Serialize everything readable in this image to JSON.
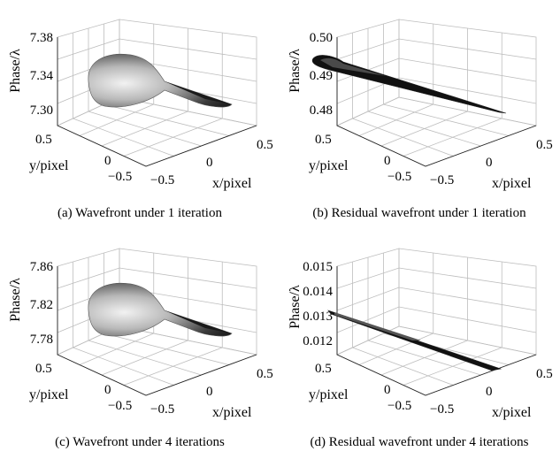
{
  "chart_data": [
    {
      "type": "surface",
      "caption": "(a) Wavefront under 1 iteration",
      "zlabel": "Phase/λ",
      "ylabel": "y/pixel",
      "xlabel": "x/pixel",
      "zlim": [
        7.28,
        7.38
      ],
      "zticks": [
        "7.38",
        "7.34",
        "7.30"
      ],
      "y_ticks": [
        "0.5",
        "0",
        "−0.5"
      ],
      "x_ticks": [
        "−0.5",
        "0",
        "0.5"
      ],
      "shape": "cone"
    },
    {
      "type": "surface",
      "caption": "(b) Residual wavefront under 1 iteration",
      "zlabel": "Phase/λ",
      "ylabel": "y/pixel",
      "xlabel": "x/pixel",
      "zlim": [
        0.475,
        0.5
      ],
      "zticks": [
        "0.50",
        "0.49",
        "0.48"
      ],
      "y_ticks": [
        "0.5",
        "0",
        "−0.5"
      ],
      "x_ticks": [
        "−0.5",
        "0",
        "0.5"
      ],
      "shape": "ribbon"
    },
    {
      "type": "surface",
      "caption": "(c) Wavefront under 4 iterations",
      "zlabel": "Phase/λ",
      "ylabel": "y/pixel",
      "xlabel": "x/pixel",
      "zlim": [
        7.76,
        7.86
      ],
      "zticks": [
        "7.86",
        "7.82",
        "7.78"
      ],
      "y_ticks": [
        "0.5",
        "0",
        "−0.5"
      ],
      "x_ticks": [
        "−0.5",
        "0",
        "0.5"
      ],
      "shape": "cone"
    },
    {
      "type": "surface",
      "caption": "(d) Residual wavefront under 4 iterations",
      "zlabel": "Phase/λ",
      "ylabel": "y/pixel",
      "xlabel": "x/pixel",
      "zlim": [
        0.012,
        0.015
      ],
      "zticks": [
        "0.015",
        "0.014",
        "0.013",
        "0.012"
      ],
      "y_ticks": [
        "0.5",
        "0",
        "−0.5"
      ],
      "x_ticks": [
        "−0.5",
        "0",
        "0.5"
      ],
      "shape": "ribbon"
    }
  ],
  "colors": {
    "grid": "#bdbdbd",
    "frame": "#222222",
    "surface_dark": "#111111",
    "surface_light": "#f2f2f2"
  }
}
